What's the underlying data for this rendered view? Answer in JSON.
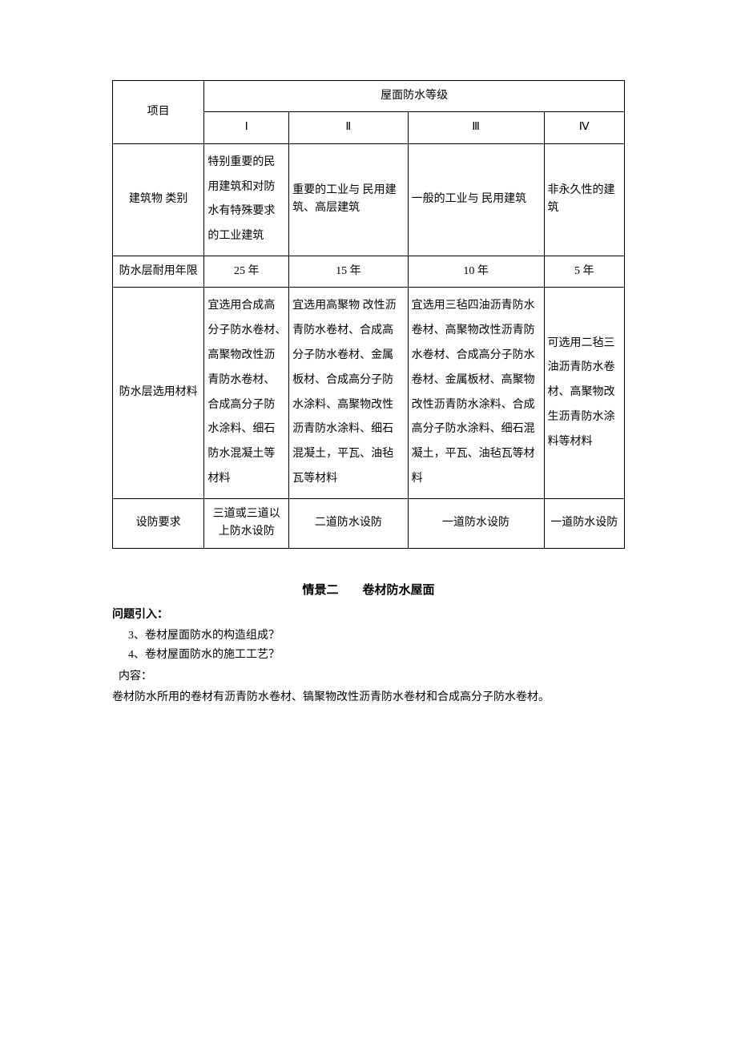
{
  "table": {
    "header": {
      "project": "项目",
      "grade_title": "屋面防水等级",
      "grades": [
        "Ⅰ",
        "Ⅱ",
        "Ⅲ",
        "Ⅳ"
      ]
    },
    "rows": {
      "building_type": {
        "label": "建筑物 类别",
        "c1": "特别重要的民用建筑和对防水有特殊要求的工业建筑",
        "c2": "重要的工业与 民用建筑、高层建筑",
        "c3": "一般的工业与 民用建筑",
        "c4": "非永久性的建筑"
      },
      "durability": {
        "label": "防水层耐用年限",
        "c1": "25 年",
        "c2": "15 年",
        "c3": "10 年",
        "c4": "5 年"
      },
      "materials": {
        "label": "防水层选用材料",
        "c1": "宜选用合成高分子防水卷材、　　　高聚物改性沥青防水卷材、合成高分子防水涂料、细石防水混凝土等材料",
        "c2": "宜选用高聚物 改性沥青防水卷材、合成高分子防水卷材、金属板材、合成高分子防水涂料、高聚物改性沥青防水涂料、细石混凝土，平瓦、油毡瓦等材料",
        "c3": "宜选用三毡四油沥青防水卷材、高聚物改性沥青防水卷材、合成高分子防水卷材、金属板材、高聚物改性沥青防水涂料、合成高分子防水涂料、细石混凝土，平瓦、油毡瓦等材料",
        "c4": "可选用二毡三油沥青防水卷材、高聚物改生沥青防水涂料等材料"
      },
      "defense": {
        "label": "设防要求",
        "c1": "三道或三道以上防水设防",
        "c2": "二道防水设防",
        "c3": "一道防水设防",
        "c4": "一道防水设防"
      }
    }
  },
  "section": {
    "title": "情景二　　卷材防水屋面",
    "question_intro": "问题引入：",
    "q3": "3、卷材屋面防水的构造组成？",
    "q4": "4、卷材屋面防水的施工工艺？",
    "content_label": "内容：",
    "content_text": "卷材防水所用的卷材有沥青防水卷材、镐聚物改性沥青防水卷材和合成高分子防水卷材。"
  }
}
